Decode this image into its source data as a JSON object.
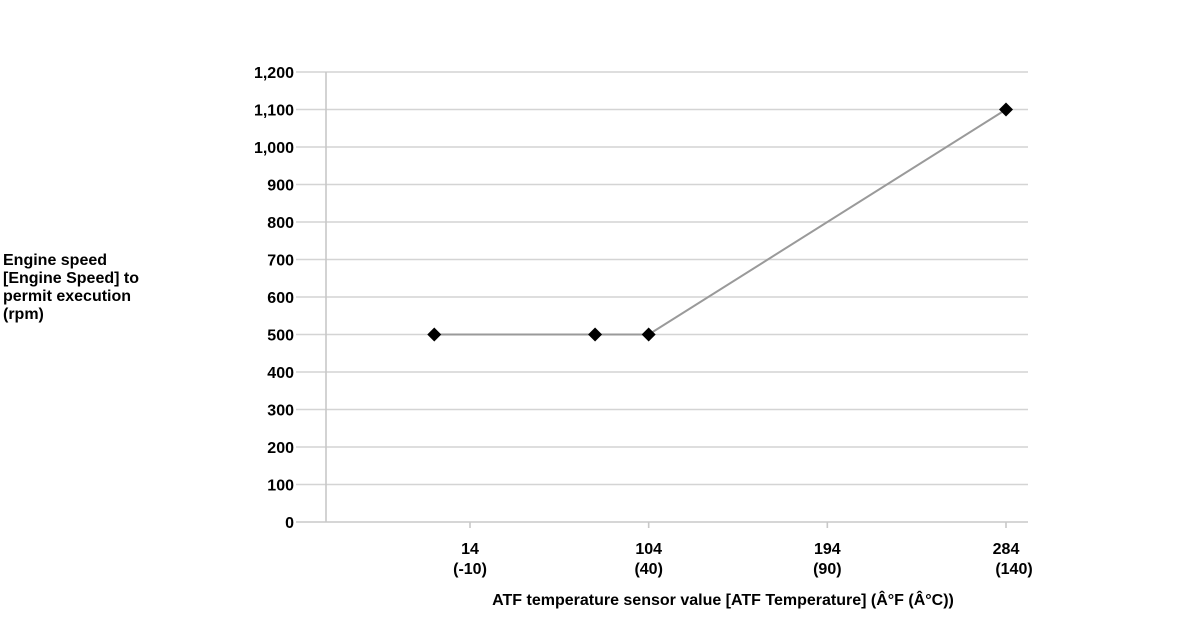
{
  "chart_data": {
    "type": "line",
    "title": "",
    "ylabel": "Engine speed\n[Engine Speed] to\npermit execution\n(rpm)",
    "xlabel": "ATF temperature sensor value [ATF Temperature] (Â°F (Â°C))",
    "ylim": [
      0,
      1200
    ],
    "xlim": [
      -26,
      290
    ],
    "yticks": [
      0,
      100,
      200,
      300,
      400,
      500,
      600,
      700,
      800,
      900,
      1000,
      1100,
      1200
    ],
    "ytick_labels": [
      "0",
      "100",
      "200",
      "300",
      "400",
      "500",
      "600",
      "700",
      "800",
      "900",
      "1,000",
      "1,100",
      "1,200"
    ],
    "xticks": [
      {
        "value": 14,
        "line1": "14",
        "line2": "(-10)"
      },
      {
        "value": 104,
        "line1": "104",
        "line2": "(40)"
      },
      {
        "value": 194,
        "line1": "194",
        "line2": "(90)"
      },
      {
        "value": 284,
        "line1": "284",
        "line2": "(140)"
      }
    ],
    "grid": true,
    "series": [
      {
        "x": [
          -4,
          77,
          104,
          284
        ],
        "y": [
          500,
          500,
          500,
          1100
        ]
      }
    ],
    "colors": {
      "line": "#9a9a9a",
      "grid": "#d4d4d4",
      "axis": "#c8c8c8",
      "marker": "#000000"
    }
  }
}
